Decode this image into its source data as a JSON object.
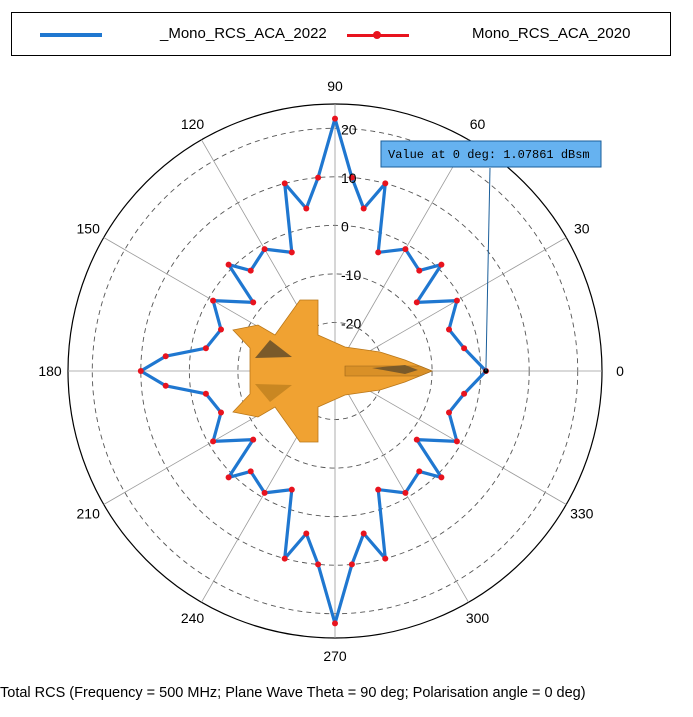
{
  "chart_data": {
    "type": "polar-line",
    "theta_unit": "deg",
    "r_unit": "dBsm",
    "r_range": [
      -30,
      25
    ],
    "r_ticks": [
      20,
      10,
      0,
      -10,
      -20
    ],
    "r_tick_labels": [
      "20",
      "10",
      "0",
      "-10",
      "-20"
    ],
    "angle_ticks": [
      0,
      30,
      60,
      90,
      120,
      150,
      180,
      210,
      240,
      270,
      300,
      330
    ],
    "angle_labels": [
      "0",
      "30",
      "60",
      "90",
      "120",
      "150",
      "180",
      "210",
      "240",
      "270",
      "300",
      "330"
    ],
    "grid": true,
    "legend_position": "top",
    "series": [
      {
        "name": "_Mono_RCS_ACA_2022",
        "color": "#1f77d0",
        "marker": "none",
        "theta": [
          0,
          10,
          20,
          30,
          40,
          45,
          50,
          60,
          70,
          75,
          80,
          85,
          90,
          95,
          100,
          105,
          110,
          120,
          130,
          135,
          140,
          150,
          160,
          170,
          175,
          180,
          185,
          190,
          200,
          210,
          220,
          225,
          230,
          240,
          250,
          255,
          260,
          265,
          270,
          275,
          280,
          285,
          290,
          300,
          310,
          315,
          320,
          330,
          340,
          350
        ],
        "r": [
          1.1,
          -3,
          -5,
          -1,
          -8,
          1,
          -3,
          -1,
          -4,
          10,
          4,
          10,
          22,
          10,
          4,
          10,
          -4,
          -1,
          -3,
          1,
          -8,
          -1,
          -5,
          -3,
          5,
          10,
          5,
          -3,
          -5,
          -1,
          -8,
          1,
          -3,
          -1,
          -4,
          10,
          4,
          10,
          22,
          10,
          4,
          10,
          -4,
          -1,
          -3,
          1,
          -8,
          -1,
          -5,
          -3
        ]
      },
      {
        "name": "Mono_RCS_ACA_2020",
        "color": "#e8131e",
        "marker": "circle",
        "theta": [
          0,
          10,
          20,
          30,
          40,
          45,
          50,
          60,
          70,
          75,
          80,
          85,
          90,
          95,
          100,
          105,
          110,
          120,
          130,
          135,
          140,
          150,
          160,
          170,
          175,
          180,
          185,
          190,
          200,
          210,
          220,
          225,
          230,
          240,
          250,
          255,
          260,
          265,
          270,
          275,
          280,
          285,
          290,
          300,
          310,
          315,
          320,
          330,
          340,
          350
        ],
        "r": [
          1.1,
          -3,
          -5,
          -1,
          -8,
          1,
          -3,
          -1,
          -4,
          10,
          4,
          10,
          22,
          10,
          4,
          10,
          -4,
          -1,
          -3,
          1,
          -8,
          -1,
          -5,
          -3,
          5,
          10,
          5,
          -3,
          -5,
          -1,
          -8,
          1,
          -3,
          -1,
          -4,
          10,
          4,
          10,
          22,
          10,
          4,
          10,
          -4,
          -1,
          -3,
          1,
          -8,
          -1,
          -5,
          -3
        ]
      }
    ],
    "annotation": {
      "text": "Value at 0 deg: 1.07861 dBsm",
      "theta": 0,
      "r": 1.07861,
      "bg_color": "#66b2f0"
    },
    "title": "Total RCS (Frequency = 500 MHz; Plane Wave Theta = 90 deg; Polarisation angle = 0 deg)"
  },
  "aircraft_color": "#f0a232"
}
